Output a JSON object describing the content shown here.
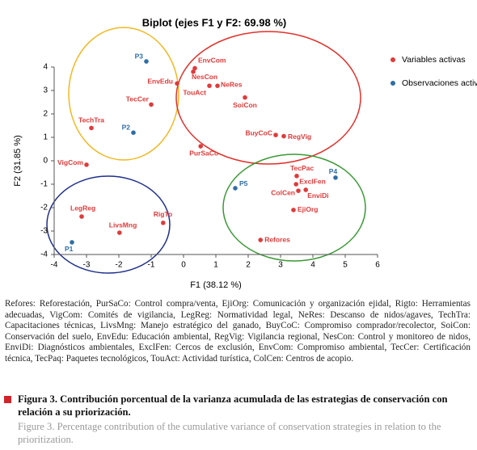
{
  "chart_data": {
    "type": "scatter",
    "title": "Biplot (ejes F1 y F2: 69.98 %)",
    "xlabel": "F1 (38.12 %)",
    "ylabel": "F2 (31.85 %)",
    "xlim": [
      -4,
      6
    ],
    "ylim": [
      -4,
      4
    ],
    "xticks": [
      -4,
      -3,
      -2,
      -1,
      0,
      1,
      2,
      3,
      4,
      5,
      6
    ],
    "yticks": [
      -4,
      -3,
      -2,
      -1,
      0,
      1,
      2,
      3,
      4
    ],
    "series": [
      {
        "name": "Variables activas",
        "color": "#e03a3a",
        "labels": [
          "EnvCom",
          "NesCon",
          "EnvEdu",
          "TouAct",
          "NeRes",
          "SoiCon",
          "TecCer",
          "TechTra",
          "BuyCoC",
          "RegVig",
          "PurSaCo",
          "VigCom",
          "TecPac",
          "ExclFen",
          "ColCen",
          "EnviDi",
          "EjiOrg",
          "Refores",
          "LegReg",
          "RigTo",
          "LivsMng"
        ],
        "x": [
          0.35,
          0.3,
          -0.2,
          0.8,
          1.05,
          1.9,
          -1.0,
          -2.85,
          2.85,
          3.1,
          0.53,
          -3.0,
          3.5,
          3.48,
          3.55,
          3.78,
          3.4,
          2.38,
          -3.15,
          -0.63,
          -1.98
        ],
        "values": [
          3.95,
          3.8,
          3.3,
          3.2,
          3.2,
          2.7,
          2.4,
          1.4,
          1.1,
          1.05,
          0.62,
          -0.17,
          -0.65,
          -1.0,
          -1.28,
          -1.24,
          -2.1,
          -3.38,
          -2.38,
          -2.65,
          -3.07
        ]
      },
      {
        "name": "Observaciones activas",
        "color": "#2f6ea5",
        "labels": [
          "P3",
          "P2",
          "P1",
          "P5",
          "P4"
        ],
        "x": [
          -1.15,
          -1.55,
          -3.45,
          1.6,
          4.7
        ],
        "values": [
          4.24,
          1.2,
          -3.48,
          -1.17,
          -0.72
        ]
      }
    ]
  },
  "note": "Refores: Reforestación, PurSaCo: Control compra/venta, EjiOrg: Comunicación y organización ejidal, Rigto: Herramientas adecuadas, VigCom: Comités de vigilancia, LegReg: Normatividad legal, NeRes: Descanso de nidos/agaves, TechTra: Capacitaciones técnicas, LivsMng: Manejo estratégico del ganado, BuyCoC: Compromiso comprador/recolector, SoiCon: Conservación del suelo, EnvEdu: Educación ambiental, RegVig: Vigilancia regional, NesCon: Control y monitoreo de nidos, EnviDi: Diagnósticos ambientales, ExclFen: Cercos de exclusión, EnvCom: Compromiso ambiental, TecCer: Certificación técnica, TecPaq: Paquetes tecnológicos, TouAct: Actividad turística, ColCen: Centros de acopio.",
  "caption_es": "Figura 3. Contribución porcentual de la varianza acumulada de las estrategias de conservación con relación a su priorización.",
  "caption_en": "Figure 3. Percentage contribution of the cumulative variance of  conservation strategies in relation to the prioritization."
}
